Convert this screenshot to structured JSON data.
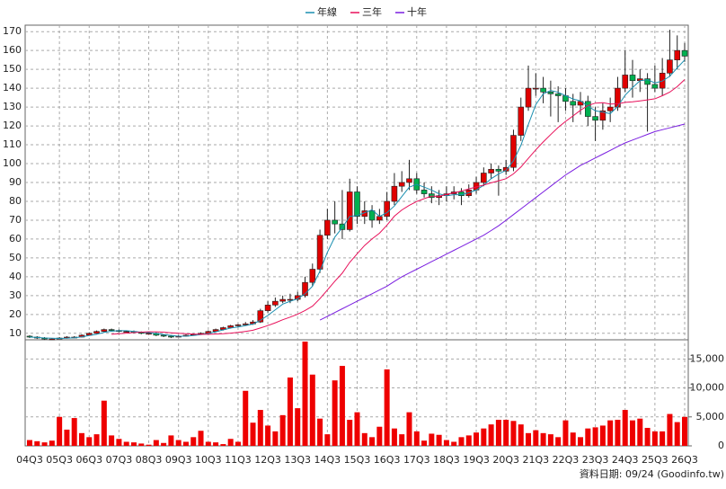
{
  "chart_data": {
    "type": "candlestick",
    "series": [
      {
        "name": "年線",
        "color": "#1a8fb0",
        "values": [
          8,
          7.8,
          7.5,
          7.4,
          7.3,
          7.4,
          7.6,
          8.1,
          8.8,
          9.5,
          10.5,
          11.1,
          11.4,
          11.4,
          11,
          10.6,
          10.4,
          9.9,
          9.4,
          8.9,
          8.5,
          8.5,
          8.8,
          9.3,
          9.9,
          10.8,
          11.8,
          12.8,
          13.4,
          14.1,
          14.9,
          16.9,
          19.5,
          22.5,
          25.5,
          27,
          28.3,
          31,
          35,
          43,
          53,
          61,
          66,
          72,
          72.5,
          74,
          75.5,
          72,
          74,
          77.5,
          82.5,
          87.5,
          89,
          87.5,
          86,
          84,
          83,
          83.5,
          83.5,
          84.5,
          86,
          88.5,
          92,
          94.5,
          96.5,
          101.5,
          109.8,
          120.8,
          131.3,
          137,
          138.8,
          137.8,
          136,
          134.3,
          133.3,
          130.5,
          128,
          127.3,
          126.5,
          130.3,
          136.3,
          140.3,
          144,
          144.5,
          142.8,
          143.8,
          146.3,
          150.8,
          155
        ]
      },
      {
        "name": "三年",
        "color": "#e8105a",
        "values": [
          null,
          null,
          null,
          null,
          null,
          null,
          null,
          null,
          null,
          null,
          null,
          9.5,
          9.8,
          10.1,
          10.4,
          10.6,
          10.8,
          10.8,
          10.6,
          10.3,
          10,
          9.8,
          9.6,
          9.5,
          9.5,
          9.6,
          9.8,
          10.1,
          10.5,
          11,
          11.6,
          12.8,
          14.1,
          15.6,
          17.2,
          18.6,
          20.1,
          22.1,
          24.4,
          28.4,
          33,
          37.6,
          41.9,
          47.6,
          52.2,
          56.6,
          60.1,
          63.1,
          67.3,
          72.1,
          75.4,
          77.9,
          79.9,
          81.4,
          82.8,
          82.6,
          83.7,
          84.5,
          85.4,
          86.6,
          87.6,
          88.6,
          89.8,
          90.9,
          92,
          94.6,
          98.2,
          102.8,
          107.3,
          111.5,
          115.4,
          119.2,
          122.4,
          125.3,
          128.3,
          130.8,
          132.1,
          132.3,
          131.6,
          131.7,
          132.5,
          132.8,
          133.3,
          133.8,
          134.4,
          136,
          137.9,
          140.8,
          144.6
        ]
      },
      {
        "name": "十年",
        "color": "#7a1ee0",
        "values": [
          null,
          null,
          null,
          null,
          null,
          null,
          null,
          null,
          null,
          null,
          null,
          null,
          null,
          null,
          null,
          null,
          null,
          null,
          null,
          null,
          null,
          null,
          null,
          null,
          null,
          null,
          null,
          null,
          null,
          null,
          null,
          null,
          null,
          null,
          null,
          null,
          null,
          null,
          null,
          17,
          19,
          21,
          23,
          25,
          27,
          29,
          31,
          33,
          35,
          37.5,
          40,
          42,
          44,
          46,
          48,
          50,
          52,
          54,
          56,
          58,
          60,
          62,
          64.5,
          67,
          70,
          73,
          76,
          79,
          82,
          85,
          88,
          91,
          94,
          96.5,
          99,
          101,
          103,
          105,
          107,
          109,
          111,
          112.5,
          114,
          115.5,
          117,
          118,
          119,
          120,
          121
        ]
      }
    ],
    "categories": [
      "04Q3",
      null,
      null,
      null,
      "05Q3",
      null,
      null,
      null,
      "06Q3",
      null,
      null,
      null,
      "07Q3",
      null,
      null,
      null,
      "08Q3",
      null,
      null,
      null,
      "09Q3",
      null,
      null,
      null,
      "10Q3",
      null,
      null,
      null,
      "11Q3",
      null,
      null,
      null,
      "12Q3",
      null,
      null,
      null,
      "13Q3",
      null,
      null,
      null,
      "14Q3",
      null,
      null,
      null,
      "15Q3",
      null,
      null,
      null,
      "16Q3",
      null,
      null,
      null,
      "17Q3",
      null,
      null,
      null,
      "18Q3",
      null,
      null,
      null,
      "19Q3",
      null,
      null,
      null,
      "20Q3",
      null,
      null,
      null,
      "21Q3",
      null,
      null,
      null,
      "22Q3",
      null,
      null,
      null,
      "23Q3",
      null,
      null,
      null,
      "24Q3",
      null,
      null,
      null,
      "25Q3",
      null,
      null,
      null,
      "26Q3"
    ],
    "ohlc": [
      [
        8.5,
        9,
        7.5,
        8
      ],
      [
        8,
        8.5,
        7,
        7.5
      ],
      [
        7.5,
        8,
        6.5,
        7
      ],
      [
        7,
        7.5,
        6.5,
        7
      ],
      [
        7,
        8,
        6.8,
        7.5
      ],
      [
        7.5,
        8.5,
        7.2,
        8
      ],
      [
        8,
        8.5,
        7.5,
        8
      ],
      [
        8,
        9.5,
        7.8,
        9
      ],
      [
        9,
        10.5,
        8.8,
        10
      ],
      [
        10,
        11.5,
        9.8,
        11
      ],
      [
        11,
        12.5,
        10.5,
        12
      ],
      [
        12,
        12.5,
        11,
        11.5
      ],
      [
        11.5,
        12,
        10.5,
        11
      ],
      [
        11,
        11.5,
        10.5,
        11
      ],
      [
        11,
        11.5,
        10,
        10.5
      ],
      [
        10.5,
        11,
        9.5,
        10
      ],
      [
        10,
        10.5,
        9.5,
        10
      ],
      [
        10,
        10.5,
        8.5,
        9
      ],
      [
        9,
        9.5,
        8,
        8.5
      ],
      [
        8.5,
        9,
        7.5,
        8
      ],
      [
        8,
        9,
        7.8,
        8.5
      ],
      [
        8.5,
        9.5,
        8.2,
        9
      ],
      [
        9,
        10,
        8.8,
        9.5
      ],
      [
        9.5,
        10.5,
        9.2,
        10
      ],
      [
        10,
        11.5,
        9.8,
        11
      ],
      [
        11,
        12.5,
        10.8,
        12
      ],
      [
        12,
        13.5,
        11.5,
        13
      ],
      [
        13,
        14.5,
        12.5,
        14
      ],
      [
        14,
        15,
        13.5,
        14.5
      ],
      [
        14.5,
        16,
        14,
        15
      ],
      [
        15,
        17,
        14.5,
        16
      ],
      [
        16,
        23,
        15.5,
        22
      ],
      [
        22,
        27,
        21,
        25
      ],
      [
        25,
        29,
        24,
        27
      ],
      [
        27,
        30,
        26,
        28
      ],
      [
        28,
        31,
        26,
        28
      ],
      [
        28,
        32,
        27,
        30
      ],
      [
        30,
        40,
        29,
        37
      ],
      [
        37,
        47,
        35,
        44
      ],
      [
        44,
        65,
        42,
        62
      ],
      [
        62,
        76,
        60,
        70
      ],
      [
        70,
        80,
        63,
        68
      ],
      [
        68,
        86,
        60,
        65
      ],
      [
        65,
        92,
        64,
        85
      ],
      [
        85,
        88,
        68,
        72
      ],
      [
        72,
        80,
        68,
        75
      ],
      [
        75,
        78,
        66,
        70
      ],
      [
        70,
        76,
        68,
        72
      ],
      [
        72,
        85,
        70,
        80
      ],
      [
        80,
        95,
        78,
        88
      ],
      [
        88,
        96,
        85,
        90
      ],
      [
        90,
        102,
        86,
        92
      ],
      [
        92,
        95,
        84,
        86
      ],
      [
        86,
        90,
        82,
        84
      ],
      [
        84,
        88,
        79,
        82
      ],
      [
        82,
        86,
        78,
        83
      ],
      [
        83,
        88,
        80,
        84
      ],
      [
        84,
        88,
        81,
        85
      ],
      [
        85,
        87,
        78,
        83
      ],
      [
        83,
        89,
        82,
        86
      ],
      [
        86,
        93,
        84,
        90
      ],
      [
        90,
        98,
        88,
        95
      ],
      [
        95,
        100,
        92,
        97
      ],
      [
        97,
        99,
        83,
        96
      ],
      [
        96,
        102,
        94,
        98
      ],
      [
        98,
        118,
        96,
        115
      ],
      [
        115,
        135,
        112,
        130
      ],
      [
        130,
        152,
        128,
        140
      ],
      [
        140,
        148,
        136,
        140
      ],
      [
        140,
        146,
        132,
        138
      ],
      [
        138,
        144,
        125,
        137
      ],
      [
        137,
        141,
        122,
        136
      ],
      [
        136,
        140,
        128,
        133
      ],
      [
        133,
        137,
        122,
        131
      ],
      [
        131,
        138,
        126,
        133
      ],
      [
        133,
        136,
        120,
        125
      ],
      [
        125,
        130,
        112,
        123
      ],
      [
        123,
        132,
        118,
        128
      ],
      [
        128,
        135,
        122,
        130
      ],
      [
        130,
        146,
        128,
        140
      ],
      [
        140,
        160,
        138,
        147
      ],
      [
        147,
        155,
        135,
        144
      ],
      [
        144,
        150,
        138,
        145
      ],
      [
        145,
        148,
        117,
        142
      ],
      [
        142,
        152,
        138,
        140
      ],
      [
        140,
        156,
        136,
        148
      ],
      [
        148,
        171,
        146,
        155
      ],
      [
        155,
        168,
        150,
        160
      ],
      [
        160,
        164,
        154,
        157
      ]
    ],
    "volume": [
      1000,
      800,
      600,
      900,
      5000,
      2800,
      4800,
      2200,
      1500,
      2000,
      7800,
      1800,
      1200,
      700,
      600,
      400,
      200,
      1000,
      500,
      1800,
      1000,
      700,
      1500,
      2600,
      700,
      600,
      300,
      1200,
      700,
      9500,
      4000,
      6200,
      3500,
      2500,
      5300,
      11800,
      6500,
      18000,
      12300,
      4700,
      2000,
      11300,
      13800,
      4500,
      5800,
      2200,
      1500,
      3300,
      13200,
      3000,
      2000,
      5800,
      2500,
      900,
      2100,
      1900,
      1000,
      700,
      1500,
      1800,
      2300,
      3000,
      3700,
      4500,
      4500,
      4300,
      3700,
      2200,
      2700,
      2200,
      2000,
      1500,
      4400,
      2300,
      1500,
      3000,
      3200,
      3500,
      4400,
      4500,
      6200,
      4400,
      4700,
      3100,
      2500,
      2500,
      5500,
      4100,
      5000
    ],
    "up_color": "#e00000",
    "down_color": "#00b050",
    "volume_color": "#ee0000",
    "ylim": [
      8,
      172
    ],
    "yticks": [
      10,
      20,
      30,
      40,
      50,
      60,
      70,
      80,
      90,
      100,
      110,
      120,
      130,
      140,
      150,
      160,
      170
    ],
    "y2lim": [
      0,
      18000
    ],
    "y2ticks": [
      {
        "value": 0,
        "label": "0"
      },
      {
        "value": 5000,
        "label": "5,000"
      },
      {
        "value": 10000,
        "label": "10,000"
      },
      {
        "value": 15000,
        "label": "15,000"
      }
    ],
    "grid": true,
    "footnote": "資料日期: 09/24  (Goodinfo.tw)"
  }
}
